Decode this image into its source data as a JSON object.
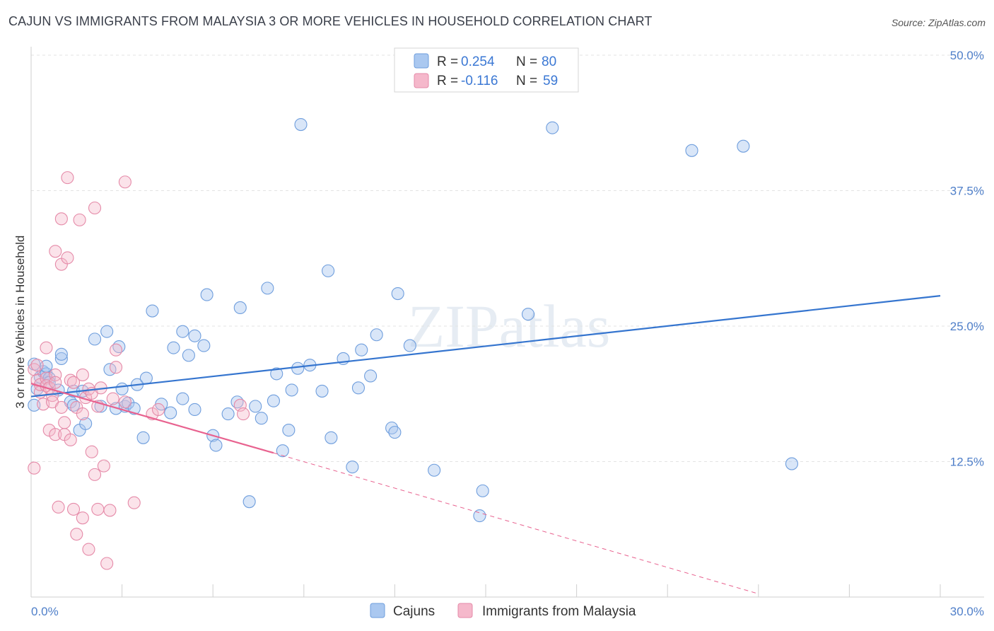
{
  "title": "CAJUN VS IMMIGRANTS FROM MALAYSIA 3 OR MORE VEHICLES IN HOUSEHOLD CORRELATION CHART",
  "source": "Source: ZipAtlas.com",
  "watermark": "ZIPatlas",
  "colors": {
    "blue": "#4f8fdc",
    "blue_fill": "#aac8f0",
    "pink": "#e8628f",
    "pink_fill": "#f5b8cb",
    "tick": "#4f7fc9"
  },
  "chart_data": {
    "type": "scatter",
    "title": "CAJUN VS IMMIGRANTS FROM MALAYSIA 3 OR MORE VEHICLES IN HOUSEHOLD CORRELATION CHART",
    "xlabel": "",
    "ylabel": "3 or more Vehicles in Household",
    "xlim": [
      0,
      30
    ],
    "ylim": [
      0,
      50
    ],
    "x_tick_labels": [
      "0.0%",
      "30.0%"
    ],
    "y_tick_values": [
      12.5,
      25.0,
      37.5,
      50.0
    ],
    "y_tick_labels": [
      "12.5%",
      "25.0%",
      "37.5%",
      "50.0%"
    ],
    "legend": [
      {
        "r_label": "R =",
        "r_value": "0.254",
        "n_label": "N =",
        "n_value": "80"
      },
      {
        "r_label": "R =",
        "r_value": "-0.116",
        "n_label": "N =",
        "n_value": "59"
      }
    ],
    "series": [
      {
        "name": "Cajuns",
        "color": "#4f8fdc",
        "trend": {
          "x": [
            0,
            30
          ],
          "y": [
            18.5,
            27.8
          ]
        },
        "points": [
          [
            0.1,
            17.7
          ],
          [
            0.1,
            21.5
          ],
          [
            0.2,
            19.2
          ],
          [
            0.3,
            20.3
          ],
          [
            0.4,
            20.8
          ],
          [
            0.5,
            20.6
          ],
          [
            0.5,
            21.3
          ],
          [
            0.6,
            20.2
          ],
          [
            0.6,
            19.8
          ],
          [
            0.9,
            19.1
          ],
          [
            1.0,
            22.0
          ],
          [
            1.0,
            22.4
          ],
          [
            1.3,
            18.0
          ],
          [
            1.4,
            19.0
          ],
          [
            1.4,
            17.7
          ],
          [
            1.6,
            15.4
          ],
          [
            1.7,
            19.0
          ],
          [
            1.8,
            16.0
          ],
          [
            2.1,
            23.8
          ],
          [
            2.3,
            17.6
          ],
          [
            2.5,
            24.5
          ],
          [
            2.6,
            21.0
          ],
          [
            2.8,
            17.4
          ],
          [
            2.9,
            23.1
          ],
          [
            3.0,
            19.2
          ],
          [
            3.1,
            17.6
          ],
          [
            3.2,
            17.9
          ],
          [
            3.4,
            17.4
          ],
          [
            3.5,
            19.6
          ],
          [
            3.7,
            14.7
          ],
          [
            3.8,
            20.2
          ],
          [
            4.0,
            26.4
          ],
          [
            4.3,
            17.8
          ],
          [
            4.6,
            17.0
          ],
          [
            4.7,
            23.0
          ],
          [
            5.0,
            18.3
          ],
          [
            5.0,
            24.5
          ],
          [
            5.2,
            22.3
          ],
          [
            5.4,
            24.1
          ],
          [
            5.4,
            17.3
          ],
          [
            5.7,
            23.2
          ],
          [
            5.8,
            27.9
          ],
          [
            6.0,
            14.9
          ],
          [
            6.1,
            14.0
          ],
          [
            6.5,
            16.9
          ],
          [
            6.8,
            18.0
          ],
          [
            6.9,
            26.7
          ],
          [
            7.2,
            8.8
          ],
          [
            7.4,
            17.6
          ],
          [
            7.6,
            16.5
          ],
          [
            7.8,
            28.5
          ],
          [
            8.0,
            18.1
          ],
          [
            8.1,
            20.6
          ],
          [
            8.3,
            13.5
          ],
          [
            8.5,
            15.4
          ],
          [
            8.6,
            19.1
          ],
          [
            8.8,
            21.1
          ],
          [
            8.9,
            43.6
          ],
          [
            9.2,
            21.4
          ],
          [
            9.6,
            19.0
          ],
          [
            9.8,
            30.1
          ],
          [
            9.9,
            14.7
          ],
          [
            10.3,
            22.0
          ],
          [
            10.6,
            12.0
          ],
          [
            10.8,
            19.3
          ],
          [
            10.9,
            22.8
          ],
          [
            11.2,
            20.4
          ],
          [
            11.4,
            24.2
          ],
          [
            11.9,
            15.6
          ],
          [
            12.0,
            15.2
          ],
          [
            12.1,
            28.0
          ],
          [
            12.5,
            23.2
          ],
          [
            13.3,
            11.7
          ],
          [
            14.8,
            7.5
          ],
          [
            14.9,
            9.8
          ],
          [
            16.4,
            26.1
          ],
          [
            17.2,
            43.3
          ],
          [
            21.8,
            41.2
          ],
          [
            23.5,
            41.6
          ],
          [
            25.1,
            12.3
          ]
        ]
      },
      {
        "name": "Immigrants from Malaysia",
        "color": "#e8628f",
        "trend": {
          "x": [
            0,
            8
          ],
          "y": [
            19.7,
            13.3
          ]
        },
        "trend_dashed": {
          "x": [
            8,
            24
          ],
          "y": [
            13.3,
            0.3
          ]
        },
        "points": [
          [
            0.1,
            11.9
          ],
          [
            0.1,
            21.0
          ],
          [
            0.2,
            21.4
          ],
          [
            0.2,
            20.0
          ],
          [
            0.3,
            18.9
          ],
          [
            0.3,
            19.6
          ],
          [
            0.4,
            17.8
          ],
          [
            0.5,
            23.0
          ],
          [
            0.5,
            20.2
          ],
          [
            0.5,
            19.5
          ],
          [
            0.6,
            15.4
          ],
          [
            0.6,
            19.3
          ],
          [
            0.7,
            18.6
          ],
          [
            0.7,
            18.0
          ],
          [
            0.8,
            31.9
          ],
          [
            0.8,
            20.5
          ],
          [
            0.8,
            15.0
          ],
          [
            0.8,
            19.8
          ],
          [
            0.9,
            8.3
          ],
          [
            1.0,
            17.5
          ],
          [
            1.0,
            30.7
          ],
          [
            1.0,
            34.9
          ],
          [
            1.1,
            15.0
          ],
          [
            1.1,
            16.1
          ],
          [
            1.2,
            31.3
          ],
          [
            1.2,
            38.7
          ],
          [
            1.3,
            14.5
          ],
          [
            1.3,
            20.0
          ],
          [
            1.4,
            19.8
          ],
          [
            1.4,
            8.1
          ],
          [
            1.5,
            5.8
          ],
          [
            1.5,
            17.5
          ],
          [
            1.6,
            34.8
          ],
          [
            1.7,
            16.9
          ],
          [
            1.7,
            20.5
          ],
          [
            1.7,
            7.3
          ],
          [
            1.8,
            18.4
          ],
          [
            1.9,
            4.4
          ],
          [
            1.9,
            19.2
          ],
          [
            2.0,
            13.4
          ],
          [
            2.0,
            18.8
          ],
          [
            2.1,
            35.9
          ],
          [
            2.1,
            11.3
          ],
          [
            2.2,
            17.6
          ],
          [
            2.2,
            8.1
          ],
          [
            2.3,
            19.3
          ],
          [
            2.4,
            12.1
          ],
          [
            2.5,
            3.1
          ],
          [
            2.6,
            8.0
          ],
          [
            2.7,
            18.3
          ],
          [
            2.8,
            21.2
          ],
          [
            2.8,
            22.8
          ],
          [
            3.1,
            38.3
          ],
          [
            3.1,
            18.0
          ],
          [
            3.4,
            8.7
          ],
          [
            4.0,
            16.9
          ],
          [
            4.2,
            17.3
          ],
          [
            6.9,
            17.7
          ],
          [
            7.0,
            16.9
          ]
        ]
      }
    ]
  },
  "bottom_legend": [
    {
      "label": "Cajuns"
    },
    {
      "label": "Immigrants from Malaysia"
    }
  ]
}
